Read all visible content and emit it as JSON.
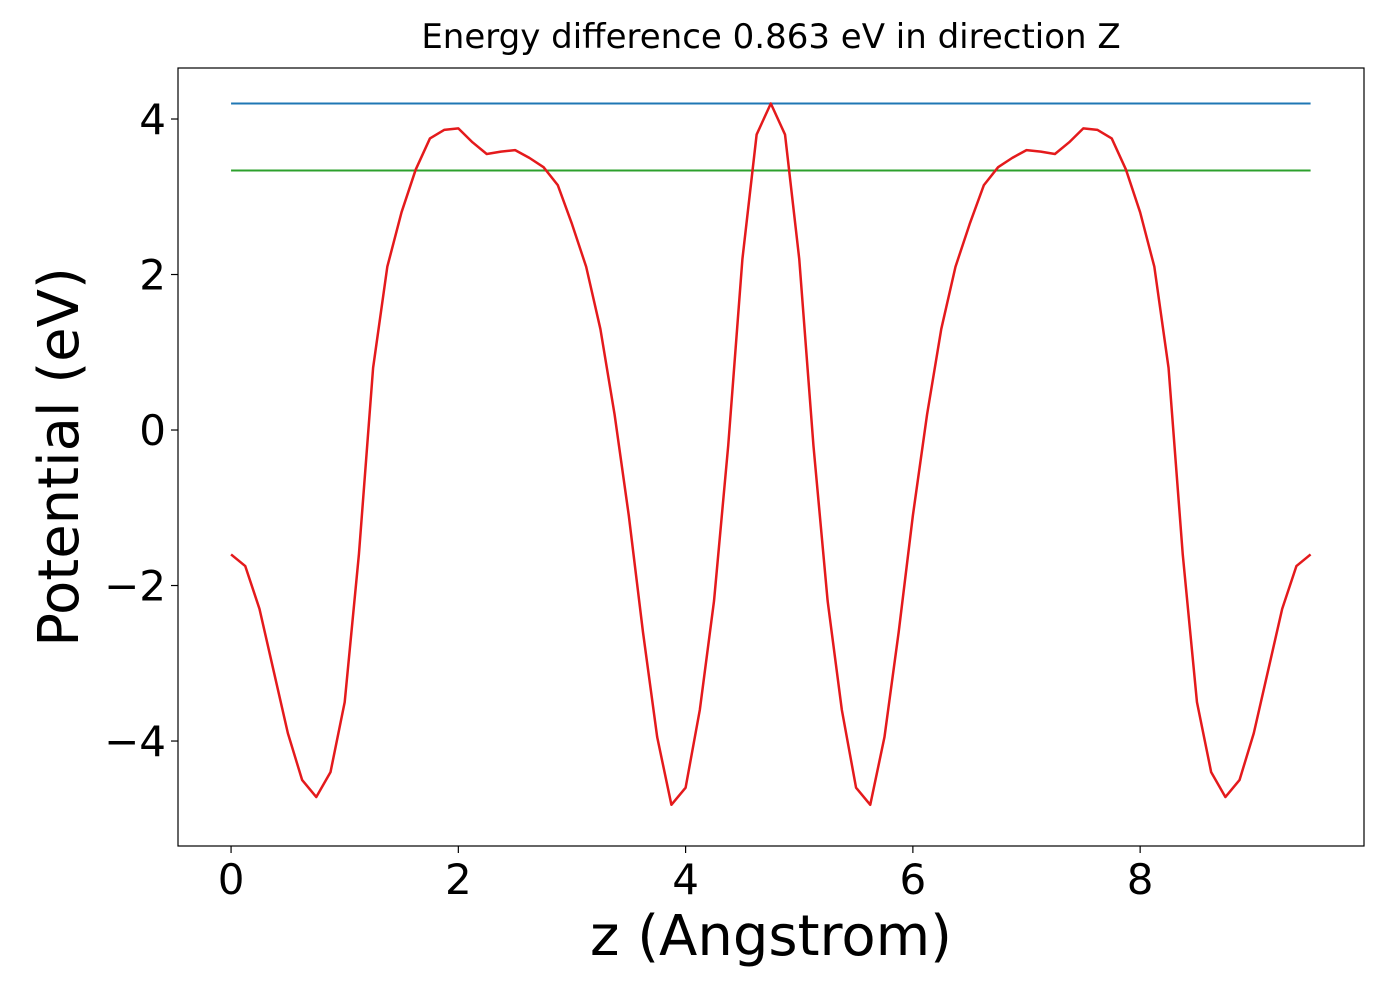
{
  "chart_data": {
    "type": "line",
    "title": "Energy difference 0.863 eV in direction Z",
    "xlabel": "z (Angstrom)",
    "ylabel": "Potential (eV)",
    "xlim": [
      -0.467,
      9.97
    ],
    "ylim": [
      -5.35,
      4.656
    ],
    "xticks": [
      0,
      2,
      4,
      6,
      8
    ],
    "yticks": [
      {
        "value": -4,
        "label": "−4"
      },
      {
        "value": -2,
        "label": "−2"
      },
      0,
      2,
      4
    ],
    "grid": false,
    "hlines": [
      {
        "y": 4.2,
        "xmin": 0,
        "xmax": 9.5,
        "color": "#1f77b4"
      },
      {
        "y": 3.337,
        "xmin": 0,
        "xmax": 9.5,
        "color": "#2ca02c"
      }
    ],
    "x": [
      0,
      0.125,
      0.25,
      0.375,
      0.5,
      0.625,
      0.75,
      0.875,
      1.0,
      1.125,
      1.25,
      1.375,
      1.5,
      1.625,
      1.75,
      1.875,
      2.0,
      2.125,
      2.25,
      2.375,
      2.5,
      2.625,
      2.75,
      2.875,
      3.0,
      3.125,
      3.25,
      3.375,
      3.5,
      3.625,
      3.75,
      3.875,
      4.0,
      4.125,
      4.25,
      4.375,
      4.5,
      4.625,
      4.75,
      4.875,
      5.0,
      5.125,
      5.25,
      5.375,
      5.5,
      5.625,
      5.75,
      5.875,
      6.0,
      6.125,
      6.25,
      6.375,
      6.5,
      6.625,
      6.75,
      6.875,
      7.0,
      7.125,
      7.25,
      7.375,
      7.5,
      7.625,
      7.75,
      7.875,
      8.0,
      8.125,
      8.25,
      8.375,
      8.5,
      8.625,
      8.75,
      8.875,
      9.0,
      9.125,
      9.25,
      9.375,
      9.5
    ],
    "series": [
      {
        "color": "#e41a1c",
        "values": [
          -1.6,
          -1.75,
          -2.3,
          -3.1,
          -3.9,
          -4.5,
          -4.72,
          -4.4,
          -3.5,
          -1.6,
          0.8,
          2.1,
          2.8,
          3.35,
          3.75,
          3.86,
          3.88,
          3.7,
          3.55,
          3.58,
          3.6,
          3.5,
          3.38,
          3.15,
          2.65,
          2.1,
          1.3,
          0.2,
          -1.1,
          -2.6,
          -3.95,
          -4.82,
          -4.6,
          -3.6,
          -2.2,
          -0.2,
          2.2,
          3.8,
          4.2,
          3.8,
          2.2,
          -0.2,
          -2.2,
          -3.6,
          -4.6,
          -4.82,
          -3.95,
          -2.6,
          -1.1,
          0.2,
          1.3,
          2.1,
          2.65,
          3.15,
          3.38,
          3.5,
          3.6,
          3.58,
          3.55,
          3.7,
          3.88,
          3.86,
          3.75,
          3.35,
          2.8,
          2.1,
          0.8,
          -1.6,
          -3.5,
          -4.4,
          -4.72,
          -4.5,
          -3.9,
          -3.1,
          -2.3,
          -1.75,
          -1.6
        ]
      }
    ]
  }
}
